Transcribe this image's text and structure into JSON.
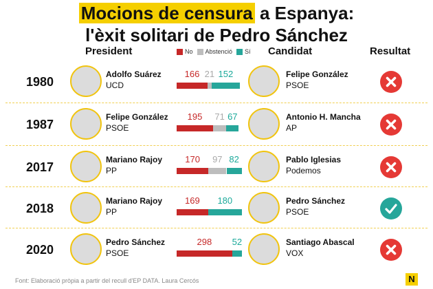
{
  "title": {
    "line1_highlight": "Mocions de censura",
    "line1_rest": " a Espanya:",
    "line2": "l'èxit solitari de Pedro Sánchez"
  },
  "headers": {
    "president": "President",
    "candidat": "Candidat",
    "resultat": "Resultat"
  },
  "legend": [
    {
      "label": "No",
      "color": "#c62828"
    },
    {
      "label": "Abstenció",
      "color": "#bdbdbd"
    },
    {
      "label": "Sí",
      "color": "#26a69a"
    }
  ],
  "chart_data": {
    "type": "bar",
    "stacked": true,
    "orientation": "horizontal",
    "categories": [
      "1980",
      "1987",
      "2017",
      "2018",
      "2020"
    ],
    "series": [
      {
        "name": "No",
        "values": [
          166,
          195,
          170,
          169,
          298
        ]
      },
      {
        "name": "Abstenció",
        "values": [
          21,
          71,
          97,
          0,
          0
        ]
      },
      {
        "name": "Sí",
        "values": [
          152,
          67,
          82,
          180,
          52
        ]
      }
    ],
    "total_seats": 350
  },
  "rows": [
    {
      "year": "1980",
      "president": {
        "name": "Adolfo Suárez",
        "party": "UCD"
      },
      "candidat": {
        "name": "Felipe González",
        "party": "PSOE"
      },
      "no": "166",
      "abst": "21",
      "si": "152",
      "result": "fail"
    },
    {
      "year": "1987",
      "president": {
        "name": "Felipe González",
        "party": "PSOE"
      },
      "candidat": {
        "name": "Antonio H. Mancha",
        "party": "AP"
      },
      "no": "195",
      "abst": "71",
      "si": "67",
      "result": "fail"
    },
    {
      "year": "2017",
      "president": {
        "name": "Mariano Rajoy",
        "party": "PP"
      },
      "candidat": {
        "name": "Pablo Iglesias",
        "party": "Podemos"
      },
      "no": "170",
      "abst": "97",
      "si": "82",
      "result": "fail"
    },
    {
      "year": "2018",
      "president": {
        "name": "Mariano Rajoy",
        "party": "PP"
      },
      "candidat": {
        "name": "Pedro Sánchez",
        "party": "PSOE"
      },
      "no": "169",
      "abst": "",
      "si": "180",
      "result": "success"
    },
    {
      "year": "2020",
      "president": {
        "name": "Pedro Sánchez",
        "party": "PSOE"
      },
      "candidat": {
        "name": "Santiago Abascal",
        "party": "VOX"
      },
      "no": "298",
      "abst": "",
      "si": "52",
      "result": "fail"
    }
  ],
  "colors": {
    "fail": "#e53935",
    "success": "#26a69a",
    "highlight": "#f5cf00"
  },
  "source": "Font: Elaboració pròpia a partir del recull d'EP DATA. Laura Cercós",
  "logo": "N"
}
